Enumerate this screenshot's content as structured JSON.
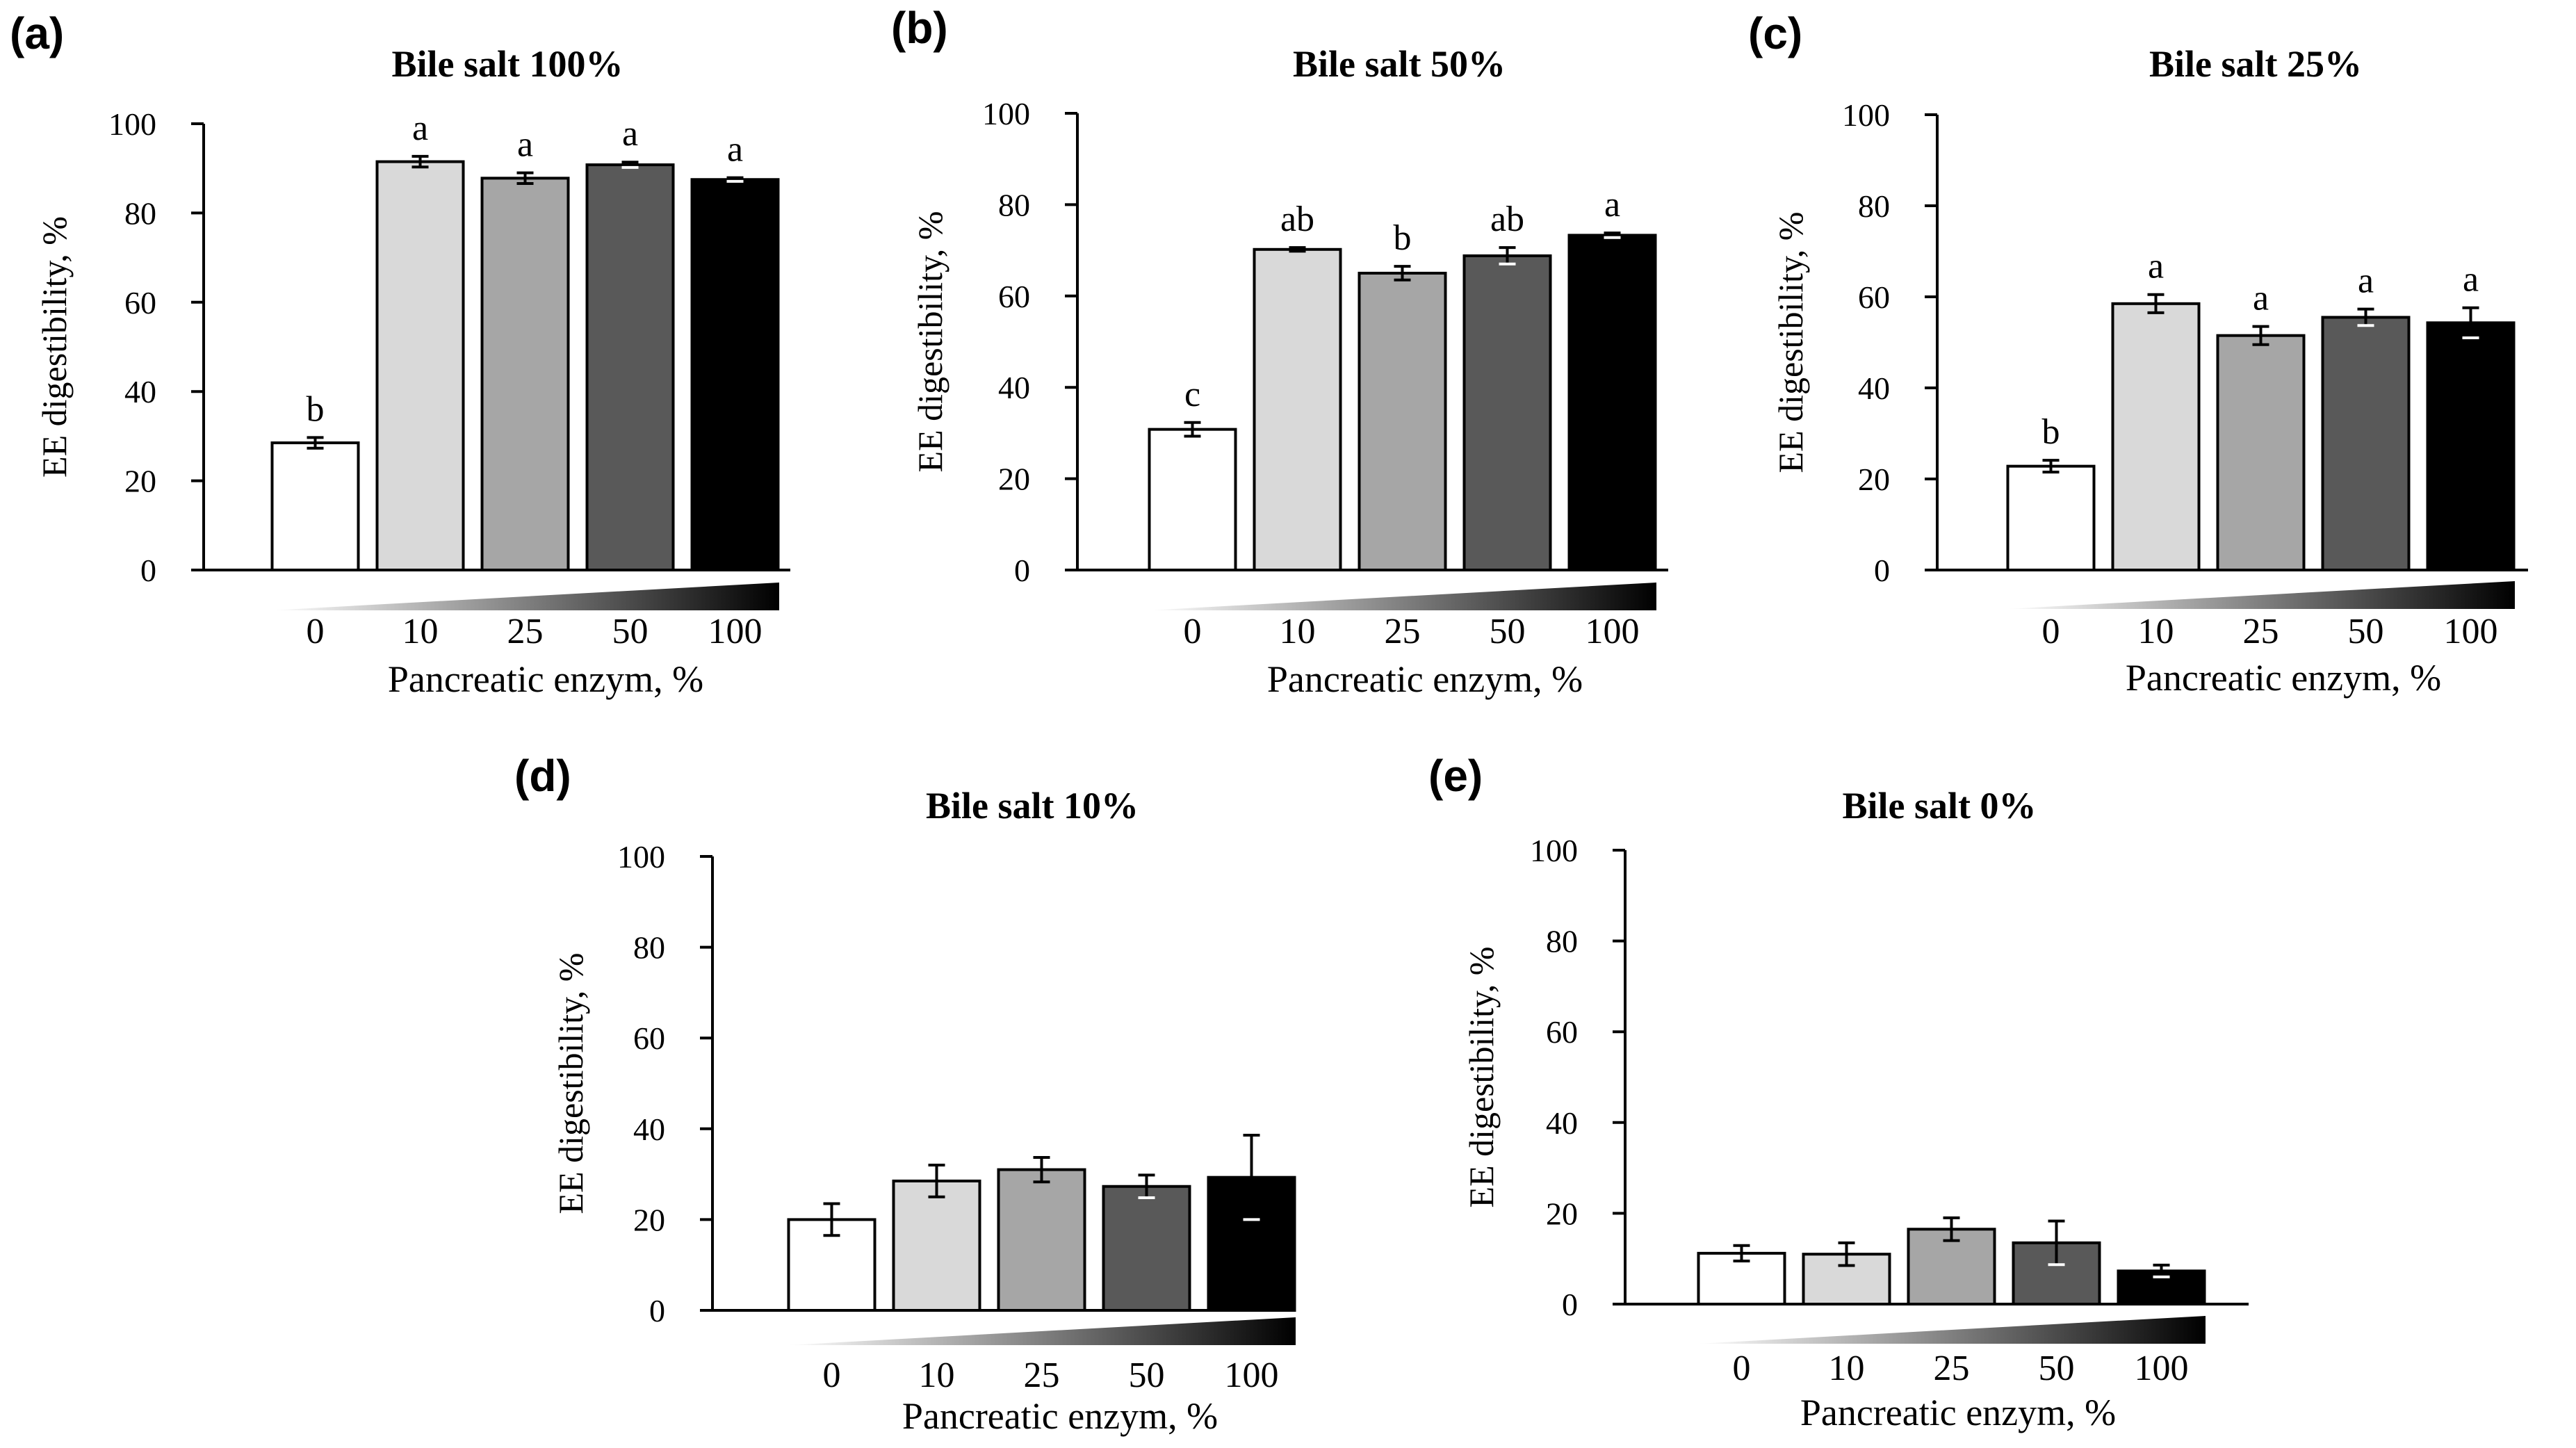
{
  "chart_data": [
    {
      "type": "bar",
      "panel": "(a)",
      "title": "Bile salt 100%",
      "xlabel": "Pancreatic enzym, %",
      "ylabel": "EE digestibility, %",
      "ylim": [
        0,
        100
      ],
      "yticks": [
        "0",
        "20",
        "40",
        "60",
        "80",
        "100"
      ],
      "categories": [
        "0",
        "10",
        "25",
        "50",
        "100"
      ],
      "values": [
        28.5,
        91.5,
        87.8,
        90.8,
        87.5
      ],
      "errors": [
        1.2,
        1.2,
        1.2,
        0.6,
        0.4
      ],
      "labels": [
        "b",
        "a",
        "a",
        "a",
        "a"
      ],
      "colors": [
        "#ffffff",
        "#d9d9d9",
        "#a6a6a6",
        "#595959",
        "#000000"
      ]
    },
    {
      "type": "bar",
      "panel": "(b)",
      "title": "Bile salt 50%",
      "xlabel": "Pancreatic enzym, %",
      "ylabel": "EE digestibility, %",
      "ylim": [
        0,
        100
      ],
      "yticks": [
        "0",
        "20",
        "40",
        "60",
        "80",
        "100"
      ],
      "categories": [
        "0",
        "10",
        "25",
        "50",
        "100"
      ],
      "values": [
        30.8,
        70.2,
        65.0,
        68.8,
        73.3
      ],
      "errors": [
        1.5,
        0.4,
        1.5,
        1.8,
        0.5
      ],
      "labels": [
        "c",
        "ab",
        "b",
        "ab",
        "a"
      ],
      "colors": [
        "#ffffff",
        "#d9d9d9",
        "#a6a6a6",
        "#595959",
        "#000000"
      ]
    },
    {
      "type": "bar",
      "panel": "(c)",
      "title": "Bile salt 25%",
      "xlabel": "Pancreatic enzym, %",
      "ylabel": "EE digestibility, %",
      "ylim": [
        0,
        100
      ],
      "yticks": [
        "0",
        "20",
        "40",
        "60",
        "80",
        "100"
      ],
      "categories": [
        "0",
        "10",
        "25",
        "50",
        "100"
      ],
      "values": [
        22.8,
        58.5,
        51.5,
        55.5,
        54.3
      ],
      "errors": [
        1.3,
        2.0,
        2.0,
        1.8,
        3.3
      ],
      "labels": [
        "b",
        "a",
        "a",
        "a",
        "a"
      ],
      "colors": [
        "#ffffff",
        "#d9d9d9",
        "#a6a6a6",
        "#595959",
        "#000000"
      ]
    },
    {
      "type": "bar",
      "panel": "(d)",
      "title": "Bile salt 10%",
      "xlabel": "Pancreatic enzym, %",
      "ylabel": "EE digestibility, %",
      "ylim": [
        0,
        100
      ],
      "yticks": [
        "0",
        "20",
        "40",
        "60",
        "80",
        "100"
      ],
      "categories": [
        "0",
        "10",
        "25",
        "50",
        "100"
      ],
      "values": [
        20.0,
        28.5,
        31.0,
        27.3,
        29.3
      ],
      "errors": [
        3.5,
        3.5,
        2.7,
        2.5,
        9.3
      ],
      "labels": [
        "",
        "",
        "",
        "",
        ""
      ],
      "colors": [
        "#ffffff",
        "#d9d9d9",
        "#a6a6a6",
        "#595959",
        "#000000"
      ]
    },
    {
      "type": "bar",
      "panel": "(e)",
      "title": "Bile salt 0%",
      "xlabel": "Pancreatic enzym, %",
      "ylabel": "EE digestibility, %",
      "ylim": [
        0,
        100
      ],
      "yticks": [
        "0",
        "20",
        "40",
        "60",
        "80",
        "100"
      ],
      "categories": [
        "0",
        "10",
        "25",
        "50",
        "100"
      ],
      "values": [
        11.2,
        11.0,
        16.5,
        13.5,
        7.3
      ],
      "errors": [
        1.7,
        2.5,
        2.5,
        4.8,
        1.3
      ],
      "labels": [
        "",
        "",
        "",
        "",
        ""
      ],
      "colors": [
        "#ffffff",
        "#d9d9d9",
        "#a6a6a6",
        "#595959",
        "#000000"
      ]
    }
  ]
}
